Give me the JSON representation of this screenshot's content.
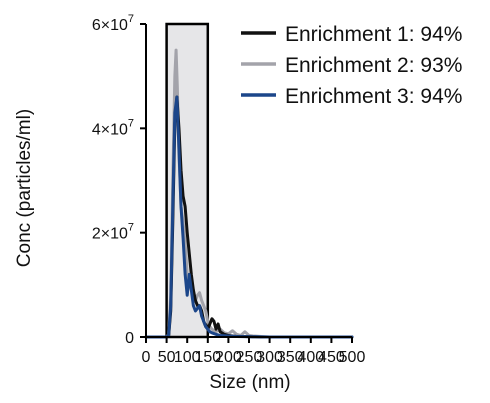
{
  "chart_data": {
    "type": "line",
    "xlabel": "Size (nm)",
    "ylabel": "Conc (particles/ml)",
    "xlim": [
      0,
      500
    ],
    "ylim": [
      0,
      60000000
    ],
    "x_ticks": [
      0,
      50,
      100,
      150,
      200,
      250,
      300,
      350,
      400,
      450,
      500
    ],
    "x_tick_labels": [
      "0",
      "50",
      "100",
      "150",
      "200",
      "250",
      "300",
      "350",
      "400",
      "450",
      "500"
    ],
    "y_ticks": [
      0,
      20000000,
      40000000,
      60000000
    ],
    "y_tick_labels": [
      {
        "mantissa": "0",
        "exp": ""
      },
      {
        "mantissa": "2×10",
        "exp": "7"
      },
      {
        "mantissa": "4×10",
        "exp": "7"
      },
      {
        "mantissa": "6×10",
        "exp": "7"
      }
    ],
    "shaded_region": {
      "x_start": 50,
      "x_end": 150,
      "fill": "#e6e6e8",
      "stroke": "#000000"
    },
    "grid": false,
    "legend_position": "top-right",
    "series": [
      {
        "name": "Enrichment 1: 94%",
        "color": "#111111",
        "x": [
          0,
          40,
          50,
          55,
          60,
          65,
          70,
          75,
          80,
          85,
          90,
          95,
          100,
          105,
          110,
          115,
          120,
          125,
          130,
          135,
          140,
          145,
          150,
          155,
          160,
          165,
          170,
          175,
          180,
          190,
          200,
          210,
          220,
          240,
          260,
          280,
          300,
          500
        ],
        "y": [
          0,
          0,
          0,
          200000,
          5000000,
          22000000,
          41000000,
          46000000,
          40000000,
          32000000,
          27000000,
          25000000,
          20000000,
          16000000,
          12000000,
          9000000,
          7000000,
          6000000,
          6000000,
          5000000,
          3000000,
          2000000,
          1500000,
          2500000,
          3500000,
          3000000,
          1500000,
          2500000,
          1000000,
          500000,
          300000,
          200000,
          100000,
          100000,
          50000,
          0,
          0,
          0
        ]
      },
      {
        "name": "Enrichment 2: 93%",
        "color": "#a3a3aa",
        "x": [
          0,
          40,
          50,
          55,
          60,
          65,
          70,
          73,
          76,
          80,
          85,
          90,
          95,
          100,
          105,
          110,
          115,
          120,
          125,
          130,
          135,
          140,
          145,
          150,
          155,
          160,
          170,
          180,
          190,
          200,
          210,
          220,
          230,
          240,
          250,
          260,
          280,
          300,
          500
        ],
        "y": [
          0,
          0,
          0,
          500000,
          8000000,
          30000000,
          50000000,
          55000000,
          48000000,
          35000000,
          25000000,
          22000000,
          18000000,
          12000000,
          10000000,
          9000000,
          8000000,
          7000000,
          8000000,
          8500000,
          7000000,
          6000000,
          5000000,
          3000000,
          2000000,
          1500000,
          1000000,
          1500000,
          800000,
          600000,
          1200000,
          500000,
          300000,
          1000000,
          300000,
          200000,
          100000,
          0,
          0
        ]
      },
      {
        "name": "Enrichment 3: 94%",
        "color": "#1c468a",
        "x": [
          0,
          40,
          50,
          55,
          60,
          65,
          70,
          75,
          80,
          85,
          90,
          95,
          100,
          105,
          110,
          115,
          120,
          125,
          130,
          135,
          140,
          145,
          150,
          155,
          160,
          170,
          180,
          200,
          220,
          250,
          300,
          500
        ],
        "y": [
          0,
          0,
          0,
          300000,
          6000000,
          25000000,
          43000000,
          46000000,
          36000000,
          25000000,
          19000000,
          12000000,
          8000000,
          12000000,
          9000000,
          6000000,
          5000000,
          5500000,
          6000000,
          4000000,
          3000000,
          2000000,
          1500000,
          1000000,
          800000,
          500000,
          300000,
          200000,
          100000,
          50000,
          0,
          0
        ]
      }
    ]
  }
}
